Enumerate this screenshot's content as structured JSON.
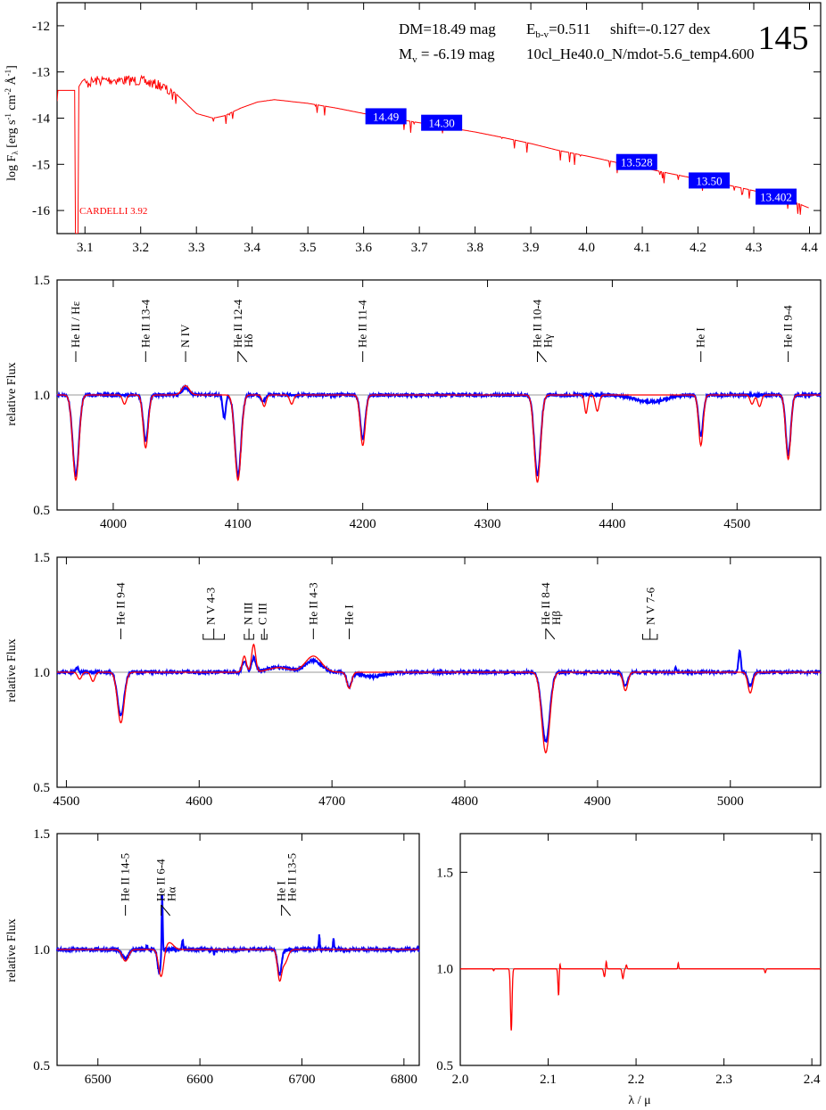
{
  "panel_number": "145",
  "info": {
    "dm": "DM=18.49 mag",
    "mv": "M",
    "mv_sub": "v",
    "mv_rest": " =  -6.19 mag",
    "ebv": "E",
    "ebv_sub": "b-v",
    "ebv_rest": "=0.511",
    "shift": "shift=-0.127 dex",
    "model": "10cl_He40.0_N/mdot-5.6_temp4.600"
  },
  "colors": {
    "obs": "#0000ff",
    "model": "#ff0000",
    "label_bg": "#0000ff",
    "axis": "#000000",
    "ref": "#999999"
  },
  "chart_data": [
    {
      "id": "sed",
      "type": "line",
      "ylabel": "log F",
      "ylabel_sub": "λ",
      "ylabel_units": " [erg s",
      "ylabel_units_sup1": "-1",
      "ylabel_units_mid": " cm",
      "ylabel_units_sup2": "-2",
      "ylabel_units_end": " Å",
      "ylabel_units_sup3": "-1",
      "ylabel_close": "]",
      "xlim": [
        3.05,
        4.42
      ],
      "ylim": [
        -16.5,
        -11.5
      ],
      "xticks": [
        "3.1",
        "3.2",
        "3.3",
        "3.4",
        "3.5",
        "3.6",
        "3.7",
        "3.8",
        "3.9",
        "4.0",
        "4.1",
        "4.2",
        "4.3",
        "4.4"
      ],
      "yticks": [
        "-12",
        "-13",
        "-14",
        "-15",
        "-16"
      ],
      "annotation": "CARDELLI 3.92",
      "photometry": [
        {
          "x": 3.64,
          "y": -13.96,
          "label": "14.49"
        },
        {
          "x": 3.74,
          "y": -14.1,
          "label": "14.30"
        },
        {
          "x": 4.09,
          "y": -14.95,
          "label": "13.528"
        },
        {
          "x": 4.22,
          "y": -15.35,
          "label": "13.50"
        },
        {
          "x": 4.34,
          "y": -15.7,
          "label": "13.402"
        }
      ],
      "model_curve": {
        "x": [
          3.05,
          3.07,
          3.085,
          3.095,
          3.1,
          3.12,
          3.15,
          3.2,
          3.24,
          3.27,
          3.3,
          3.33,
          3.35,
          3.38,
          3.41,
          3.44,
          3.5,
          3.55,
          3.6,
          3.65,
          3.7,
          3.75,
          3.8,
          3.85,
          3.9,
          3.95,
          4.0,
          4.05,
          4.1,
          4.15,
          4.2,
          4.25,
          4.3,
          4.35,
          4.4
        ],
        "y": [
          -13.4,
          -13.4,
          -13.4,
          -13.2,
          -13.15,
          -13.08,
          -13.06,
          -13.08,
          -13.2,
          -13.55,
          -13.9,
          -14.0,
          -13.95,
          -13.78,
          -13.65,
          -13.6,
          -13.68,
          -13.78,
          -13.9,
          -14.0,
          -14.1,
          -14.2,
          -14.3,
          -14.42,
          -14.55,
          -14.7,
          -14.82,
          -14.95,
          -15.07,
          -15.2,
          -15.32,
          -15.44,
          -15.57,
          -15.7,
          -15.95
        ]
      }
    },
    {
      "id": "blue1",
      "type": "line",
      "ylabel": "relative Flux",
      "xlim": [
        3955,
        4567
      ],
      "ylim": [
        0.5,
        1.5
      ],
      "xticks": [
        "4000",
        "4100",
        "4200",
        "4300",
        "4400",
        "4500"
      ],
      "yticks": [
        "0.5",
        "1.0",
        "1.5"
      ],
      "lines": [
        {
          "x": 3970,
          "labels": [
            "He II / Hε"
          ]
        },
        {
          "x": 4026,
          "labels": [
            "He II 13-4"
          ]
        },
        {
          "x": 4058,
          "labels": [
            "N IV"
          ]
        },
        {
          "x": 4100,
          "labels": [
            "He II 12-4",
            "Hδ"
          ]
        },
        {
          "x": 4200,
          "labels": [
            "He II 11-4"
          ]
        },
        {
          "x": 4340,
          "labels": [
            "He II 10-4",
            "Hγ"
          ]
        },
        {
          "x": 4471,
          "labels": [
            "He I"
          ]
        },
        {
          "x": 4541,
          "labels": [
            "He II 9-4"
          ]
        }
      ],
      "features": {
        "model": [
          [
            3970,
            0.63,
            2.5
          ],
          [
            4026,
            0.77,
            2.0
          ],
          [
            4100,
            0.63,
            2.5
          ],
          [
            4200,
            0.78,
            2.0
          ],
          [
            4340,
            0.62,
            2.5
          ],
          [
            4471,
            0.78,
            1.8
          ],
          [
            4541,
            0.72,
            2.0
          ],
          [
            4009,
            0.96,
            1.5
          ],
          [
            4121,
            0.95,
            1.5
          ],
          [
            4143,
            0.96,
            1.5
          ],
          [
            4388,
            0.93,
            1.5
          ],
          [
            4379,
            0.92,
            1.2
          ],
          [
            4512,
            0.96,
            1.5
          ],
          [
            4518,
            0.95,
            1.5
          ],
          [
            4058,
            1.04,
            3.0
          ]
        ],
        "obs": [
          [
            3970,
            0.65,
            2.5
          ],
          [
            4026,
            0.8,
            2.0
          ],
          [
            4100,
            0.65,
            2.5
          ],
          [
            4200,
            0.81,
            2.0
          ],
          [
            4340,
            0.65,
            2.5
          ],
          [
            4471,
            0.82,
            1.8
          ],
          [
            4541,
            0.74,
            2.0
          ],
          [
            4089,
            0.9,
            1.2
          ],
          [
            4058,
            1.03,
            3.0
          ],
          [
            4430,
            0.97,
            12.0
          ],
          [
            4120,
            0.97,
            1.5
          ]
        ]
      }
    },
    {
      "id": "blue2",
      "type": "line",
      "ylabel": "relative Flux",
      "xlim": [
        4493,
        5068
      ],
      "ylim": [
        0.5,
        1.5
      ],
      "xticks": [
        "4500",
        "4600",
        "4700",
        "4800",
        "4900",
        "5000"
      ],
      "yticks": [
        "0.5",
        "1.0",
        "1.5"
      ],
      "lines": [
        {
          "x": 4541,
          "labels": [
            "He II 9-4"
          ]
        },
        {
          "x": 4609,
          "labels": [
            "N V 4-3"
          ],
          "bracket": [
            4603,
            4619
          ]
        },
        {
          "x": 4637,
          "labels": [
            "N III"
          ],
          "bracket": [
            4634,
            4641
          ]
        },
        {
          "x": 4648,
          "labels": [
            "C III"
          ],
          "bracket": [
            4647,
            4651
          ]
        },
        {
          "x": 4686,
          "labels": [
            "He II 4-3"
          ]
        },
        {
          "x": 4713,
          "labels": [
            "He I"
          ]
        },
        {
          "x": 4861,
          "labels": [
            "He II 8-4",
            "Hβ"
          ]
        },
        {
          "x": 4940,
          "labels": [
            "N V 7-6"
          ],
          "bracket": [
            4934,
            4945
          ]
        }
      ],
      "features": {
        "model": [
          [
            4541,
            0.78,
            2.5
          ],
          [
            4861,
            0.65,
            3.0
          ],
          [
            4921,
            0.92,
            1.8
          ],
          [
            5015,
            0.91,
            1.8
          ],
          [
            4713,
            0.93,
            1.8
          ],
          [
            4634,
            1.07,
            1.5
          ],
          [
            4641,
            1.12,
            1.5
          ],
          [
            4686,
            1.07,
            6.0
          ],
          [
            4520,
            0.96,
            1.5
          ],
          [
            4510,
            0.97,
            1.5
          ],
          [
            4660,
            1.02,
            8.0
          ]
        ],
        "obs": [
          [
            4541,
            0.81,
            2.5
          ],
          [
            4861,
            0.7,
            3.0
          ],
          [
            4921,
            0.94,
            1.8
          ],
          [
            5015,
            0.94,
            1.8
          ],
          [
            4713,
            0.94,
            1.8
          ],
          [
            4634,
            1.05,
            1.5
          ],
          [
            4641,
            1.06,
            1.5
          ],
          [
            4686,
            1.05,
            6.0
          ],
          [
            4660,
            1.02,
            10.0
          ],
          [
            4730,
            0.98,
            8.0
          ],
          [
            5007,
            1.1,
            0.8
          ],
          [
            4959,
            1.02,
            0.6
          ],
          [
            4508,
            1.02,
            1.0
          ]
        ]
      }
    },
    {
      "id": "halpha",
      "type": "line",
      "ylabel": "relative Flux",
      "xlim": [
        6460,
        6815
      ],
      "ylim": [
        0.5,
        1.5
      ],
      "xticks": [
        "6500",
        "6600",
        "6700",
        "6800"
      ],
      "yticks": [
        "0.5",
        "1.0",
        "1.5"
      ],
      "lines": [
        {
          "x": 6527,
          "labels": [
            "He II 14-5"
          ]
        },
        {
          "x": 6562,
          "labels": [
            "He II 6-4",
            "Hα"
          ]
        },
        {
          "x": 6680,
          "labels": [
            "He I",
            "He II 13-5"
          ]
        }
      ],
      "features": {
        "model": [
          [
            6527,
            0.95,
            3.0
          ],
          [
            6562,
            0.88,
            2.5
          ],
          [
            6678,
            0.88,
            2.0
          ],
          [
            6570,
            1.03,
            4.0
          ],
          [
            6683,
            0.94,
            3.0
          ]
        ],
        "obs": [
          [
            6527,
            0.96,
            3.0
          ],
          [
            6560,
            0.9,
            1.5
          ],
          [
            6563,
            1.25,
            0.5
          ],
          [
            6583,
            1.04,
            0.6
          ],
          [
            6548,
            1.02,
            0.6
          ],
          [
            6678,
            0.89,
            2.0
          ],
          [
            6717,
            1.06,
            0.5
          ],
          [
            6731,
            1.05,
            0.5
          ],
          [
            6614,
            0.98,
            0.5
          ]
        ]
      }
    },
    {
      "id": "ir",
      "type": "line",
      "xlabel": "λ / μ",
      "xlim": [
        2.0,
        2.41
      ],
      "ylim": [
        0.5,
        1.7
      ],
      "xticks": [
        "2.0",
        "2.1",
        "2.2",
        "2.3",
        "2.4"
      ],
      "yticks": [
        "0.5",
        "1.0",
        "1.5"
      ],
      "features": {
        "model": [
          [
            2.058,
            0.68,
            0.0009
          ],
          [
            2.112,
            0.85,
            0.0008
          ],
          [
            2.113,
            1.07,
            0.0006
          ],
          [
            2.164,
            0.96,
            0.0009
          ],
          [
            2.166,
            1.04,
            0.0006
          ],
          [
            2.185,
            0.95,
            0.0009
          ],
          [
            2.189,
            1.02,
            0.0006
          ],
          [
            2.248,
            1.03,
            0.0005
          ],
          [
            2.347,
            0.98,
            0.0007
          ],
          [
            2.038,
            0.99,
            0.0005
          ]
        ]
      }
    }
  ]
}
